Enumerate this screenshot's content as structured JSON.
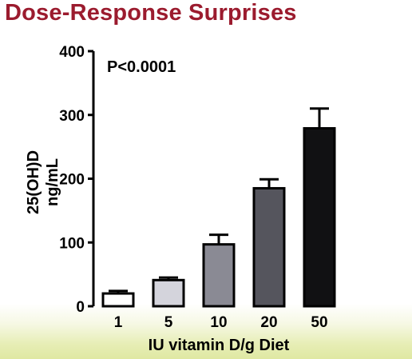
{
  "slide": {
    "title": "Dose-Response Surprises"
  },
  "chart_data": {
    "type": "bar",
    "categories": [
      "1",
      "5",
      "10",
      "20",
      "50"
    ],
    "values": [
      20,
      41,
      97,
      185,
      279
    ],
    "error_upper": [
      24,
      45,
      112,
      199,
      310
    ],
    "bar_colors": [
      "#ffffff",
      "#d4d4dc",
      "#8a8a94",
      "#55555d",
      "#111113"
    ],
    "xlabel": "IU vitamin D/g Diet",
    "ylabel": [
      "25(OH)D",
      "ng/mL"
    ],
    "ylim": [
      0,
      400
    ],
    "yticks": [
      0,
      100,
      200,
      300,
      400
    ],
    "annotation": "P<0.0001",
    "grid": false
  }
}
